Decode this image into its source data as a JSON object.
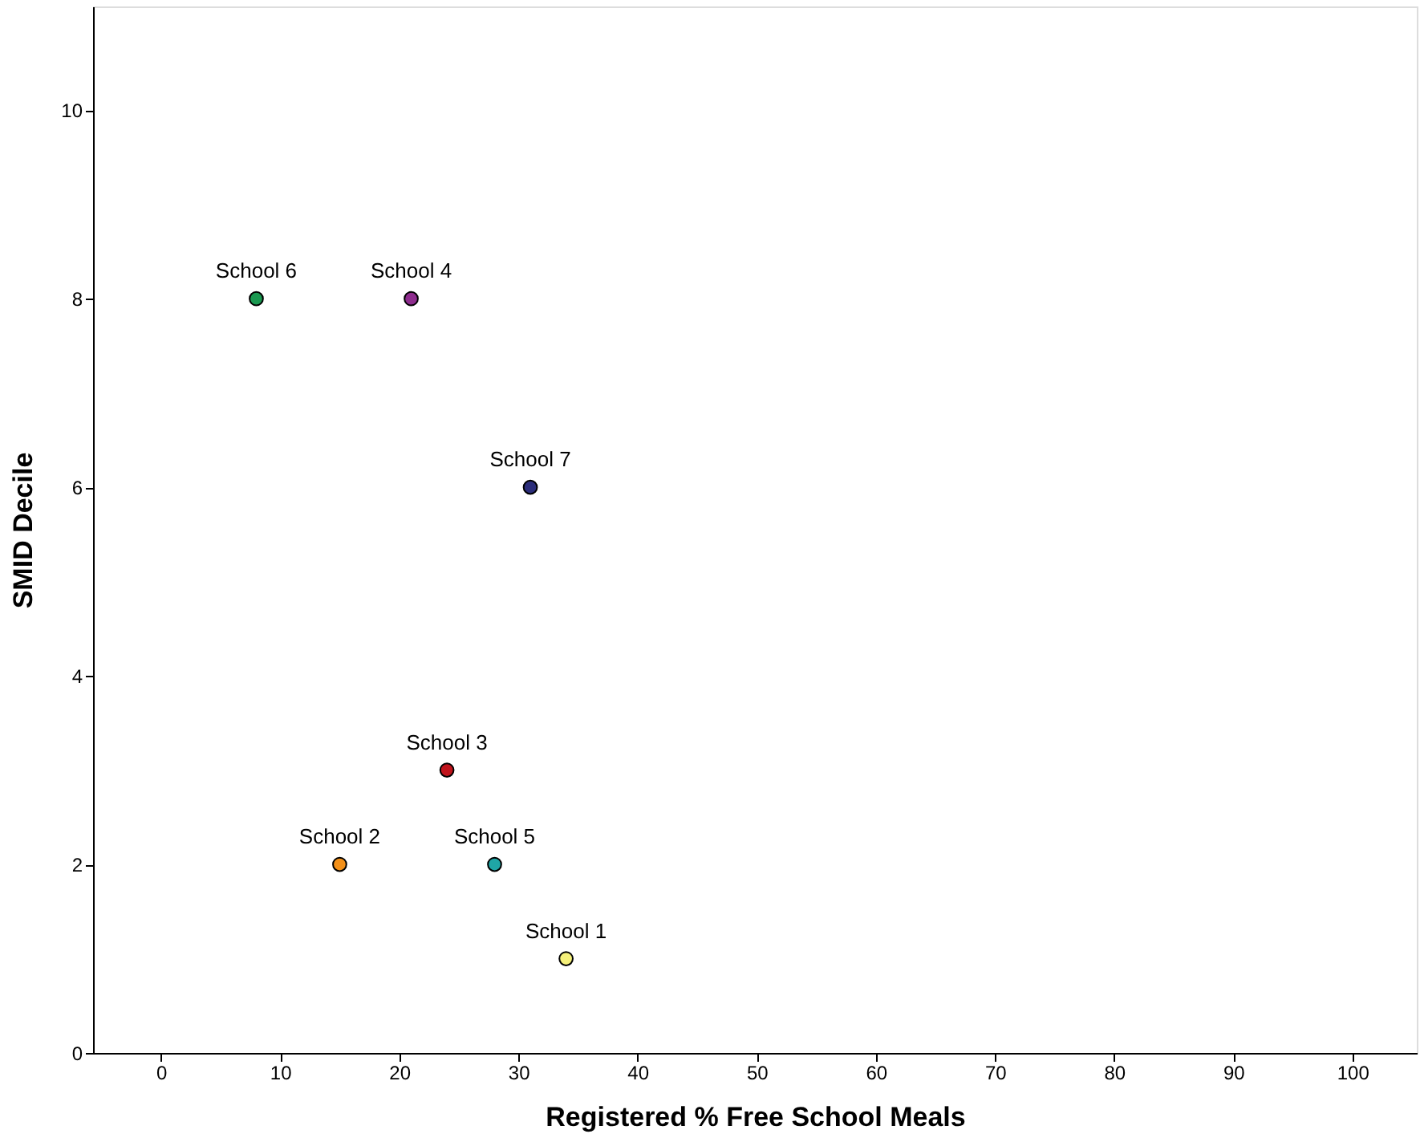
{
  "chart_data": {
    "type": "scatter",
    "xlabel": "Registered % Free School Meals",
    "ylabel": "SMID Decile",
    "xlim": [
      -5.7,
      105.4
    ],
    "ylim": [
      0,
      11.1
    ],
    "xticks": [
      0,
      10,
      20,
      30,
      40,
      50,
      60,
      70,
      80,
      90,
      100
    ],
    "yticks": [
      0,
      2,
      4,
      6,
      8,
      10
    ],
    "grid": false,
    "legend": false,
    "marker": "circle",
    "series": [
      {
        "name": "School 1",
        "color": "#f5f07a",
        "x": [
          34
        ],
        "values": [
          1
        ]
      },
      {
        "name": "School 2",
        "color": "#f39019",
        "x": [
          15
        ],
        "values": [
          2
        ]
      },
      {
        "name": "School 3",
        "color": "#c0141c",
        "x": [
          24
        ],
        "values": [
          3
        ]
      },
      {
        "name": "School 4",
        "color": "#8e2c8e",
        "x": [
          21
        ],
        "values": [
          8
        ]
      },
      {
        "name": "School 5",
        "color": "#1fa6a6",
        "x": [
          28
        ],
        "values": [
          2
        ]
      },
      {
        "name": "School 6",
        "color": "#1a9850",
        "x": [
          8
        ],
        "values": [
          8
        ]
      },
      {
        "name": "School 7",
        "color": "#2b2d7a",
        "x": [
          31
        ],
        "values": [
          6
        ]
      }
    ]
  }
}
